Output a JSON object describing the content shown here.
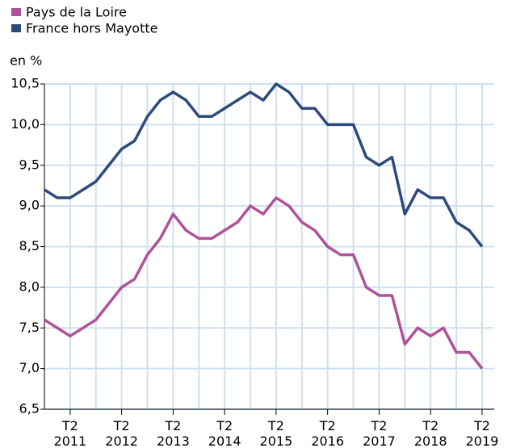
{
  "chart_data": {
    "type": "line",
    "y_label": "en %",
    "categories": [
      null,
      null,
      "T2\n2011",
      null,
      null,
      null,
      "T2\n2012",
      null,
      null,
      null,
      "T2\n2013",
      null,
      null,
      null,
      "T2\n2014",
      null,
      null,
      null,
      "T2\n2015",
      null,
      null,
      null,
      "T2\n2016",
      null,
      null,
      null,
      "T2\n2017",
      null,
      null,
      null,
      "T2\n2018",
      null,
      null,
      null,
      "T2\n2019"
    ],
    "series": [
      {
        "name": "Pays de la Loire",
        "color": "#b0529a",
        "values": [
          7.6,
          7.5,
          7.4,
          7.5,
          7.6,
          7.8,
          8.0,
          8.1,
          8.4,
          8.6,
          8.9,
          8.7,
          8.6,
          8.6,
          8.7,
          8.8,
          9.0,
          8.9,
          9.1,
          9.0,
          8.8,
          8.7,
          8.5,
          8.4,
          8.4,
          8.0,
          7.9,
          7.9,
          7.3,
          7.5,
          7.4,
          7.5,
          7.2,
          7.2,
          7.0
        ]
      },
      {
        "name": "France hors Mayotte",
        "color": "#2e4a7d",
        "values": [
          9.2,
          9.1,
          9.1,
          9.2,
          9.3,
          9.5,
          9.7,
          9.8,
          10.1,
          10.3,
          10.4,
          10.3,
          10.1,
          10.1,
          10.2,
          10.3,
          10.4,
          10.3,
          10.5,
          10.4,
          10.2,
          10.2,
          10.0,
          10.0,
          10.0,
          9.6,
          9.5,
          9.6,
          8.9,
          9.2,
          9.1,
          9.1,
          8.8,
          8.7,
          8.5
        ]
      }
    ],
    "ylim": [
      6.5,
      10.5
    ],
    "yticks": [
      {
        "value": 6.5,
        "label": "6,5"
      },
      {
        "value": 7.0,
        "label": "7,0"
      },
      {
        "value": 7.5,
        "label": "7,5"
      },
      {
        "value": 8.0,
        "label": "8,0"
      },
      {
        "value": 8.5,
        "label": "8,5"
      },
      {
        "value": 9.0,
        "label": "9,0"
      },
      {
        "value": 9.5,
        "label": "9,5"
      },
      {
        "value": 10.0,
        "label": "10,0"
      },
      {
        "value": 10.5,
        "label": "10,5"
      }
    ],
    "grid": true
  }
}
